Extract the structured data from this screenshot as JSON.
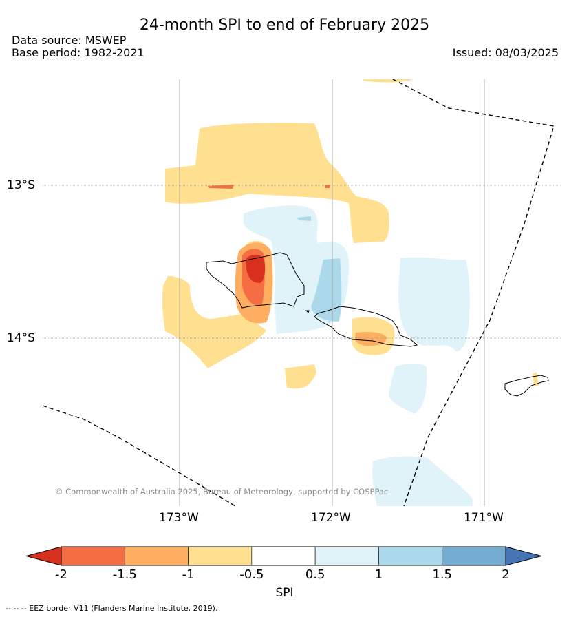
{
  "title": "24-month SPI to end of February 2025",
  "data_source": "Data source: MSWEP",
  "base_period": "Base period: 1982-2021",
  "issued": "Issued: 08/03/2025",
  "copyright": "© Commonwealth of Australia 2025, Bureau of Meteorology, supported by COSPPac",
  "lat_ticks": [
    "13°S",
    "14°S"
  ],
  "lon_ticks": [
    "173°W",
    "172°W",
    "171°W"
  ],
  "colorbar": {
    "label": "SPI",
    "tick_labels": [
      "-2",
      "-1.5",
      "-1",
      "-0.5",
      "0.5",
      "1",
      "1.5",
      "2"
    ],
    "colors": [
      "#d7301f",
      "#f46d43",
      "#fdae61",
      "#fee090",
      "#ffffff",
      "#e0f3f8",
      "#abd9e9",
      "#74add1",
      "#4575b4"
    ]
  },
  "footer": "--  --  -- EEZ border V11 (Flanders Marine Institute, 2019)."
}
